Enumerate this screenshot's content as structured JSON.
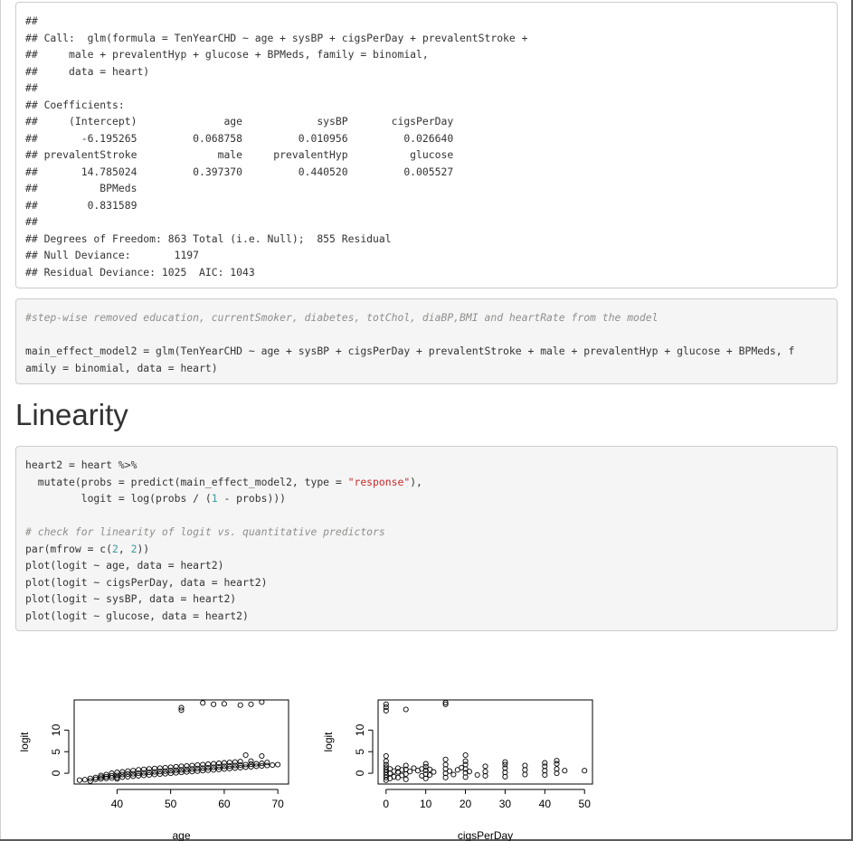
{
  "output_block": {
    "lines": [
      "##",
      "## Call:  glm(formula = TenYearCHD ~ age + sysBP + cigsPerDay + prevalentStroke +",
      "##     male + prevalentHyp + glucose + BPMeds, family = binomial,",
      "##     data = heart)",
      "##",
      "## Coefficients:",
      "##     (Intercept)              age            sysBP       cigsPerDay",
      "##       -6.195265         0.068758         0.010956         0.026640",
      "## prevalentStroke             male     prevalentHyp          glucose",
      "##       14.785024         0.397370         0.440520         0.005527",
      "##          BPMeds",
      "##        0.831589",
      "##",
      "## Degrees of Freedom: 863 Total (i.e. Null);  855 Residual",
      "## Null Deviance:       1197",
      "## Residual Deviance: 1025  AIC: 1043"
    ]
  },
  "code_block_1": {
    "comment": "#step-wise removed education, currentSmoker, diabetes, totChol, diaBP,BMI and heartRate from the model",
    "line_1": "main_effect_model2 = glm(TenYearCHD ~ age + sysBP + cigsPerDay + prevalentStroke + male + prevalentHyp + glucose + BPMeds, f",
    "line_2": "amily = binomial, data = heart)"
  },
  "section_title": "Linearity",
  "code_block_2": {
    "l1": "heart2 = heart %>%",
    "l2a": "  mutate(probs = predict(main_effect_model2, type = ",
    "l2_str": "\"response\"",
    "l2b": "),",
    "l3a": "         logit = log(probs / (",
    "l3_num": "1",
    "l3b": " - probs)))",
    "l4_comment": "# check for linearity of logit vs. quantitative predictors",
    "l5a": "par(mfrow = c(",
    "l5_n1": "2",
    "l5_sep": ", ",
    "l5_n2": "2",
    "l5b": "))",
    "l6": "plot(logit ~ age, data = heart2)",
    "l7": "plot(logit ~ cigsPerDay, data = heart2)",
    "l8": "plot(logit ~ sysBP, data = heart2)",
    "l9": "plot(logit ~ glucose, data = heart2)"
  },
  "chart_data": [
    {
      "type": "scatter",
      "xlabel": "age",
      "ylabel": "logit",
      "xlim": [
        32,
        72
      ],
      "ylim": [
        -2.5,
        17
      ],
      "xticks": [
        "40",
        "50",
        "60",
        "70"
      ],
      "yticks": [
        "0",
        "5",
        "10"
      ],
      "marker": "open-circle",
      "points": [
        [
          33,
          -1.6
        ],
        [
          34,
          -1.5
        ],
        [
          35,
          -1.8
        ],
        [
          35,
          -1.2
        ],
        [
          36,
          -1.4
        ],
        [
          36,
          -1.0
        ],
        [
          37,
          -1.3
        ],
        [
          37,
          -0.9
        ],
        [
          37,
          -0.5
        ],
        [
          38,
          -1.2
        ],
        [
          38,
          -0.8
        ],
        [
          38,
          -0.3
        ],
        [
          39,
          -1.1
        ],
        [
          39,
          -0.6
        ],
        [
          39,
          0.0
        ],
        [
          40,
          -1.0
        ],
        [
          40,
          -0.5
        ],
        [
          40,
          0.2
        ],
        [
          40,
          -1.3
        ],
        [
          41,
          -0.9
        ],
        [
          41,
          -0.3
        ],
        [
          41,
          0.3
        ],
        [
          42,
          -0.8
        ],
        [
          42,
          -0.2
        ],
        [
          42,
          0.5
        ],
        [
          43,
          -0.7
        ],
        [
          43,
          -0.1
        ],
        [
          43,
          0.6
        ],
        [
          44,
          -0.6
        ],
        [
          44,
          0.0
        ],
        [
          44,
          0.8
        ],
        [
          45,
          -0.5
        ],
        [
          45,
          0.1
        ],
        [
          45,
          0.9
        ],
        [
          46,
          -0.4
        ],
        [
          46,
          0.2
        ],
        [
          46,
          1.0
        ],
        [
          47,
          -0.3
        ],
        [
          47,
          0.3
        ],
        [
          47,
          1.1
        ],
        [
          48,
          -0.2
        ],
        [
          48,
          0.4
        ],
        [
          48,
          1.2
        ],
        [
          49,
          -0.1
        ],
        [
          49,
          0.5
        ],
        [
          49,
          1.3
        ],
        [
          50,
          0.0
        ],
        [
          50,
          0.6
        ],
        [
          50,
          1.4
        ],
        [
          51,
          0.1
        ],
        [
          51,
          0.7
        ],
        [
          51,
          1.5
        ],
        [
          52,
          0.2
        ],
        [
          52,
          0.8
        ],
        [
          52,
          1.6
        ],
        [
          53,
          0.3
        ],
        [
          53,
          0.9
        ],
        [
          53,
          1.7
        ],
        [
          54,
          0.4
        ],
        [
          54,
          1.0
        ],
        [
          54,
          1.8
        ],
        [
          55,
          0.5
        ],
        [
          55,
          1.1
        ],
        [
          55,
          1.9
        ],
        [
          56,
          0.6
        ],
        [
          56,
          1.2
        ],
        [
          56,
          2.0
        ],
        [
          57,
          0.7
        ],
        [
          57,
          1.3
        ],
        [
          57,
          2.1
        ],
        [
          58,
          0.8
        ],
        [
          58,
          1.4
        ],
        [
          58,
          2.2
        ],
        [
          59,
          0.9
        ],
        [
          59,
          1.5
        ],
        [
          59,
          2.3
        ],
        [
          60,
          1.0
        ],
        [
          60,
          1.6
        ],
        [
          60,
          2.4
        ],
        [
          61,
          1.1
        ],
        [
          61,
          1.7
        ],
        [
          61,
          2.5
        ],
        [
          62,
          1.2
        ],
        [
          62,
          1.8
        ],
        [
          62,
          2.6
        ],
        [
          63,
          1.3
        ],
        [
          63,
          1.9
        ],
        [
          63,
          2.7
        ],
        [
          64,
          1.4
        ],
        [
          64,
          2.0
        ],
        [
          64,
          4.2
        ],
        [
          65,
          1.5
        ],
        [
          65,
          2.1
        ],
        [
          65,
          2.8
        ],
        [
          66,
          1.6
        ],
        [
          66,
          2.2
        ],
        [
          67,
          1.7
        ],
        [
          67,
          2.3
        ],
        [
          67,
          4.0
        ],
        [
          68,
          1.8
        ],
        [
          68,
          2.5
        ],
        [
          69,
          1.9
        ],
        [
          70,
          2.0
        ],
        [
          52,
          14.6
        ],
        [
          52,
          15.2
        ],
        [
          56,
          16.3
        ],
        [
          58,
          16.0
        ],
        [
          60,
          16.1
        ],
        [
          63,
          15.8
        ],
        [
          65,
          16.0
        ],
        [
          67,
          16.5
        ]
      ]
    },
    {
      "type": "scatter",
      "xlabel": "cigsPerDay",
      "ylabel": "logit",
      "xlim": [
        -2,
        52
      ],
      "ylim": [
        -2.5,
        17
      ],
      "xticks": [
        "0",
        "10",
        "20",
        "30",
        "40",
        "50"
      ],
      "yticks": [
        "0",
        "5",
        "10"
      ],
      "marker": "open-circle",
      "points": [
        [
          0,
          -1.6
        ],
        [
          0,
          -1.0
        ],
        [
          0,
          -0.4
        ],
        [
          0,
          0.2
        ],
        [
          0,
          0.8
        ],
        [
          0,
          1.4
        ],
        [
          0,
          2.0
        ],
        [
          0,
          2.8
        ],
        [
          0,
          4.0
        ],
        [
          1,
          -1.2
        ],
        [
          1,
          0.0
        ],
        [
          1,
          1.0
        ],
        [
          2,
          -0.8
        ],
        [
          2,
          0.5
        ],
        [
          3,
          -1.0
        ],
        [
          3,
          0.3
        ],
        [
          3,
          1.2
        ],
        [
          4,
          -0.5
        ],
        [
          4,
          0.8
        ],
        [
          5,
          -1.4
        ],
        [
          5,
          -0.2
        ],
        [
          5,
          0.9
        ],
        [
          5,
          1.8
        ],
        [
          6,
          0.4
        ],
        [
          7,
          1.2
        ],
        [
          8,
          0.6
        ],
        [
          9,
          -0.6
        ],
        [
          9,
          1.0
        ],
        [
          10,
          -1.2
        ],
        [
          10,
          -0.2
        ],
        [
          10,
          0.7
        ],
        [
          10,
          1.5
        ],
        [
          10,
          2.2
        ],
        [
          11,
          -0.4
        ],
        [
          11,
          0.9
        ],
        [
          12,
          0.3
        ],
        [
          15,
          -1.0
        ],
        [
          15,
          0.0
        ],
        [
          15,
          1.0
        ],
        [
          15,
          2.0
        ],
        [
          15,
          3.2
        ],
        [
          16,
          0.5
        ],
        [
          17,
          -0.3
        ],
        [
          18,
          0.8
        ],
        [
          19,
          1.3
        ],
        [
          20,
          -0.9
        ],
        [
          20,
          0.1
        ],
        [
          20,
          1.0
        ],
        [
          20,
          2.0
        ],
        [
          20,
          2.8
        ],
        [
          20,
          4.2
        ],
        [
          21,
          0.4
        ],
        [
          23,
          -0.4
        ],
        [
          25,
          -0.6
        ],
        [
          25,
          0.4
        ],
        [
          25,
          1.6
        ],
        [
          30,
          -0.8
        ],
        [
          30,
          0.2
        ],
        [
          30,
          1.2
        ],
        [
          30,
          2.0
        ],
        [
          30,
          2.6
        ],
        [
          35,
          -0.3
        ],
        [
          35,
          0.8
        ],
        [
          35,
          1.8
        ],
        [
          40,
          -0.4
        ],
        [
          40,
          0.6
        ],
        [
          40,
          1.6
        ],
        [
          40,
          2.4
        ],
        [
          43,
          0.0
        ],
        [
          43,
          1.0
        ],
        [
          43,
          2.2
        ],
        [
          43,
          2.9
        ],
        [
          45,
          0.6
        ],
        [
          50,
          0.6
        ],
        [
          0,
          14.5
        ],
        [
          0,
          15.3
        ],
        [
          0,
          16.0
        ],
        [
          5,
          14.8
        ],
        [
          15,
          16.0
        ],
        [
          15,
          16.4
        ]
      ]
    }
  ]
}
